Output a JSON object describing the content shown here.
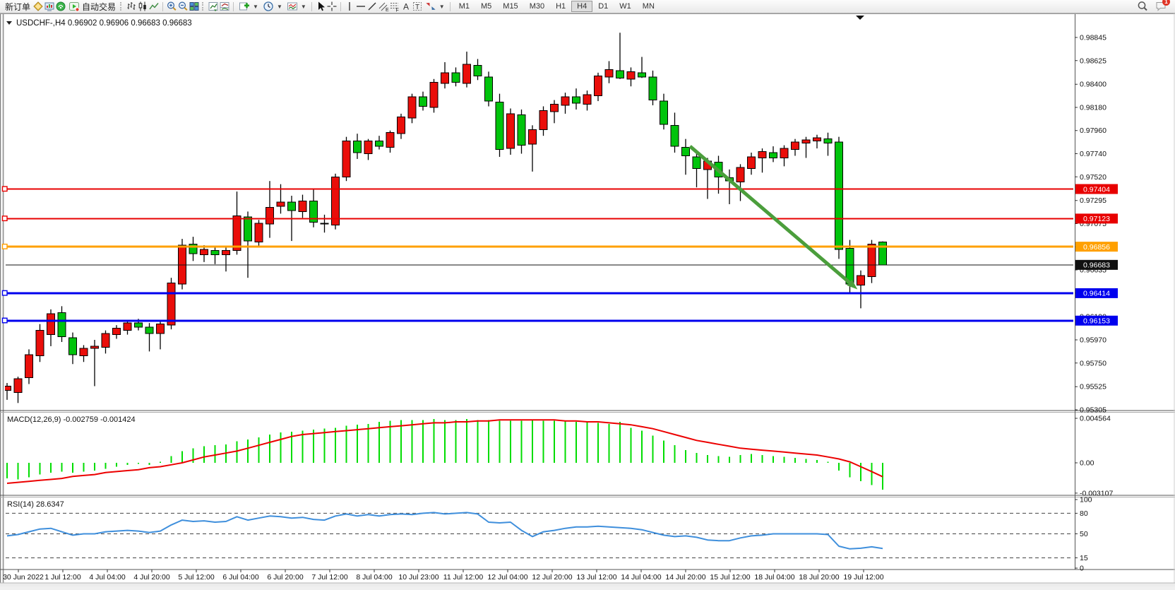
{
  "toolbar": {
    "new_order_label": "新订单",
    "auto_trading_label": "自动交易",
    "timeframes": [
      "M1",
      "M5",
      "M15",
      "M30",
      "H1",
      "H4",
      "D1",
      "W1",
      "MN"
    ],
    "active_timeframe": "H4",
    "notification_count": "1"
  },
  "chart_header": {
    "symbol_period": "USDCHF-,H4",
    "open": "0.96902",
    "high": "0.96906",
    "low": "0.96683",
    "close": "0.96683"
  },
  "colors": {
    "bull_candle": "#ea0e0a",
    "bear_candle": "#00c40c",
    "wick": "#000000",
    "red_line": "#e80000",
    "orange_line": "#ffa000",
    "blue_line": "#0000ee",
    "bid_line": "#111111",
    "macd_histogram": "#00dd00",
    "macd_signal": "#ec0000",
    "rsi_line": "#3f8fdc",
    "arrow": "#4b9e3c"
  },
  "chart_data": {
    "type": "candlestick",
    "symbol": "USDCHF-",
    "period": "H4",
    "x_labels": [
      "30 Jun 2022",
      "1 Jul 12:00",
      "4 Jul 04:00",
      "4 Jul 20:00",
      "5 Jul 12:00",
      "6 Jul 04:00",
      "6 Jul 20:00",
      "7 Jul 12:00",
      "8 Jul 04:00",
      "10 Jul 23:00",
      "11 Jul 12:00",
      "12 Jul 04:00",
      "12 Jul 20:00",
      "13 Jul 12:00",
      "14 Jul 04:00",
      "14 Jul 20:00",
      "15 Jul 12:00",
      "18 Jul 04:00",
      "18 Jul 20:00",
      "19 Jul 12:00"
    ],
    "y_ticks": [
      {
        "value": 0.98845,
        "label": "0.98845"
      },
      {
        "value": 0.98625,
        "label": "0.98625"
      },
      {
        "value": 0.984,
        "label": "0.98400"
      },
      {
        "value": 0.9818,
        "label": "0.98180"
      },
      {
        "value": 0.9796,
        "label": "0.97960"
      },
      {
        "value": 0.9774,
        "label": "0.97740"
      },
      {
        "value": 0.9752,
        "label": "0.97520"
      },
      {
        "value": 0.97295,
        "label": "0.97295"
      },
      {
        "value": 0.97075,
        "label": "0.97075"
      },
      {
        "value": 0.96855,
        "label": "0.96855"
      },
      {
        "value": 0.96635,
        "label": "0.96635"
      },
      {
        "value": 0.96415,
        "label": "0.96415"
      },
      {
        "value": 0.9619,
        "label": "0.96190"
      },
      {
        "value": 0.9597,
        "label": "0.95970"
      },
      {
        "value": 0.9575,
        "label": "0.95750"
      },
      {
        "value": 0.95525,
        "label": "0.95525"
      },
      {
        "value": 0.95305,
        "label": "0.95305"
      }
    ],
    "hlines": [
      {
        "price": 0.97404,
        "label": "0.97404",
        "color_key": "red_line",
        "width": 2
      },
      {
        "price": 0.97123,
        "label": "0.97123",
        "color_key": "red_line",
        "width": 2
      },
      {
        "price": 0.96856,
        "label": "0.96856",
        "color_key": "orange_line",
        "width": 3
      },
      {
        "price": 0.96414,
        "label": "0.96414",
        "color_key": "blue_line",
        "width": 3
      },
      {
        "price": 0.96153,
        "label": "0.96153",
        "color_key": "blue_line",
        "width": 3
      }
    ],
    "bid_line": {
      "price": 0.96683,
      "label": "0.96683",
      "color_key": "bid_line",
      "width": 1
    },
    "candles_ohlc": [
      [
        0.9549,
        0.9556,
        0.954,
        0.9553
      ],
      [
        0.9547,
        0.9562,
        0.9537,
        0.956
      ],
      [
        0.9561,
        0.9588,
        0.9555,
        0.9583
      ],
      [
        0.9582,
        0.9612,
        0.9576,
        0.9606
      ],
      [
        0.9602,
        0.9626,
        0.9591,
        0.9622
      ],
      [
        0.9623,
        0.9629,
        0.9595,
        0.96
      ],
      [
        0.9599,
        0.9604,
        0.9574,
        0.9583
      ],
      [
        0.9582,
        0.9592,
        0.9576,
        0.9589
      ],
      [
        0.9589,
        0.9597,
        0.9553,
        0.9591
      ],
      [
        0.959,
        0.9606,
        0.9584,
        0.9603
      ],
      [
        0.9602,
        0.9611,
        0.9598,
        0.9608
      ],
      [
        0.9606,
        0.9616,
        0.9602,
        0.9613
      ],
      [
        0.9613,
        0.9617,
        0.9606,
        0.9609
      ],
      [
        0.9609,
        0.9613,
        0.9586,
        0.9603
      ],
      [
        0.9603,
        0.9615,
        0.9588,
        0.9612
      ],
      [
        0.9611,
        0.9656,
        0.9607,
        0.9651
      ],
      [
        0.965,
        0.9693,
        0.9645,
        0.9687
      ],
      [
        0.9688,
        0.9695,
        0.9672,
        0.9679
      ],
      [
        0.9678,
        0.9687,
        0.9671,
        0.9683
      ],
      [
        0.9682,
        0.9686,
        0.9669,
        0.9678
      ],
      [
        0.9678,
        0.9685,
        0.9662,
        0.9682
      ],
      [
        0.9682,
        0.9738,
        0.9678,
        0.9715
      ],
      [
        0.9714,
        0.9719,
        0.9656,
        0.9691
      ],
      [
        0.969,
        0.9711,
        0.9685,
        0.9708
      ],
      [
        0.9707,
        0.9748,
        0.9694,
        0.9723
      ],
      [
        0.9724,
        0.9745,
        0.9717,
        0.9728
      ],
      [
        0.9728,
        0.9734,
        0.9691,
        0.972
      ],
      [
        0.9719,
        0.9735,
        0.9713,
        0.9729
      ],
      [
        0.9729,
        0.9741,
        0.9704,
        0.9709
      ],
      [
        0.9708,
        0.9716,
        0.9699,
        0.9707
      ],
      [
        0.9706,
        0.9755,
        0.9702,
        0.9752
      ],
      [
        0.9752,
        0.979,
        0.9748,
        0.9786
      ],
      [
        0.9786,
        0.9793,
        0.9769,
        0.9775
      ],
      [
        0.9774,
        0.9788,
        0.9768,
        0.9786
      ],
      [
        0.9786,
        0.9791,
        0.9778,
        0.9781
      ],
      [
        0.978,
        0.9796,
        0.9775,
        0.9794
      ],
      [
        0.9793,
        0.9812,
        0.9788,
        0.9809
      ],
      [
        0.9808,
        0.9831,
        0.9803,
        0.9828
      ],
      [
        0.9828,
        0.9833,
        0.9815,
        0.9819
      ],
      [
        0.9818,
        0.9845,
        0.9813,
        0.9842
      ],
      [
        0.9841,
        0.9861,
        0.9836,
        0.9851
      ],
      [
        0.9851,
        0.9856,
        0.9838,
        0.9842
      ],
      [
        0.9841,
        0.9871,
        0.9837,
        0.9859
      ],
      [
        0.9858,
        0.9864,
        0.9844,
        0.9848
      ],
      [
        0.9847,
        0.9852,
        0.9819,
        0.9824
      ],
      [
        0.9823,
        0.9831,
        0.9771,
        0.9778
      ],
      [
        0.9779,
        0.9817,
        0.9773,
        0.9812
      ],
      [
        0.9811,
        0.9816,
        0.9774,
        0.9782
      ],
      [
        0.9783,
        0.9801,
        0.9757,
        0.9797
      ],
      [
        0.9797,
        0.9819,
        0.9791,
        0.9815
      ],
      [
        0.9814,
        0.9825,
        0.9803,
        0.9821
      ],
      [
        0.982,
        0.9832,
        0.9812,
        0.9828
      ],
      [
        0.9828,
        0.9836,
        0.9816,
        0.9822
      ],
      [
        0.9821,
        0.9834,
        0.9815,
        0.983
      ],
      [
        0.9829,
        0.9851,
        0.9824,
        0.9848
      ],
      [
        0.9847,
        0.9862,
        0.9841,
        0.9854
      ],
      [
        0.9853,
        0.9889,
        0.9845,
        0.9846
      ],
      [
        0.9845,
        0.9856,
        0.9838,
        0.9852
      ],
      [
        0.9851,
        0.9866,
        0.9846,
        0.9847
      ],
      [
        0.9847,
        0.9853,
        0.982,
        0.9825
      ],
      [
        0.9824,
        0.9831,
        0.9797,
        0.9802
      ],
      [
        0.9801,
        0.9813,
        0.9775,
        0.9781
      ],
      [
        0.978,
        0.9788,
        0.9754,
        0.9772
      ],
      [
        0.9771,
        0.9777,
        0.9742,
        0.976
      ],
      [
        0.9759,
        0.977,
        0.9731,
        0.9767
      ],
      [
        0.9766,
        0.9772,
        0.9736,
        0.9752
      ],
      [
        0.9751,
        0.9759,
        0.9726,
        0.9748
      ],
      [
        0.9747,
        0.9764,
        0.9729,
        0.9761
      ],
      [
        0.976,
        0.9775,
        0.9754,
        0.9771
      ],
      [
        0.977,
        0.9779,
        0.9756,
        0.9776
      ],
      [
        0.9775,
        0.9781,
        0.9766,
        0.977
      ],
      [
        0.977,
        0.9782,
        0.9762,
        0.9779
      ],
      [
        0.9778,
        0.9788,
        0.9772,
        0.9785
      ],
      [
        0.9784,
        0.979,
        0.977,
        0.9787
      ],
      [
        0.9786,
        0.9792,
        0.9779,
        0.9789
      ],
      [
        0.9788,
        0.9794,
        0.9772,
        0.9784
      ],
      [
        0.9785,
        0.979,
        0.9674,
        0.9683
      ],
      [
        0.9684,
        0.9692,
        0.9641,
        0.965
      ],
      [
        0.9649,
        0.9663,
        0.9627,
        0.9658
      ],
      [
        0.9657,
        0.9692,
        0.9651,
        0.9688
      ],
      [
        0.96902,
        0.96906,
        0.96683,
        0.96683
      ]
    ],
    "annotation_arrow": {
      "from_index": 62.4,
      "from_price": 0.9781,
      "to_index": 77.7,
      "to_price": 0.9645
    },
    "indicators": [
      {
        "type": "histogram+line",
        "name": "MACD(12,26,9)",
        "label": "MACD(12,26,9) -0.002759 -0.001424",
        "main_value": "-0.002759",
        "signal_value": "-0.001424",
        "ticks": [
          {
            "value": 0.004564,
            "label": "0.004564"
          },
          {
            "value": 0,
            "label": "0.00"
          },
          {
            "value": -0.003107,
            "label": "-0.003107"
          }
        ],
        "histogram": [
          -0.0016,
          -0.0017,
          -0.0015,
          -0.0012,
          -0.001,
          -0.0009,
          -0.001,
          -0.0009,
          -0.0008,
          -0.0006,
          -0.0004,
          -0.0002,
          -0.0001,
          -0.0002,
          0.0001,
          0.0007,
          0.0012,
          0.0015,
          0.0017,
          0.0018,
          0.0019,
          0.0022,
          0.0024,
          0.0026,
          0.0029,
          0.0031,
          0.0032,
          0.0033,
          0.0034,
          0.0035,
          0.0036,
          0.0038,
          0.0039,
          0.004,
          0.0042,
          0.0043,
          0.0044,
          0.0044,
          0.0044,
          0.0045,
          0.0044,
          0.0044,
          0.0045,
          0.0044,
          0.0044,
          0.0043,
          0.0043,
          0.0043,
          0.0044,
          0.0043,
          0.0043,
          0.0043,
          0.0042,
          0.0042,
          0.0041,
          0.004,
          0.0042,
          0.0036,
          0.0033,
          0.0028,
          0.0023,
          0.0018,
          0.0013,
          0.001,
          0.0008,
          0.0007,
          0.0006,
          0.0008,
          0.0009,
          0.0008,
          0.0007,
          0.0006,
          0.0005,
          0.0004,
          0.0003,
          0.0001,
          -0.0008,
          -0.0015,
          -0.0019,
          -0.0023,
          -0.002759
        ],
        "signal": [
          -0.0021,
          -0.002,
          -0.0019,
          -0.0018,
          -0.0017,
          -0.0016,
          -0.0014,
          -0.0013,
          -0.0012,
          -0.001,
          -0.0009,
          -0.0008,
          -0.0007,
          -0.0005,
          -0.0004,
          -0.0002,
          0.0,
          0.0003,
          0.0006,
          0.0008,
          0.001,
          0.0012,
          0.0015,
          0.0018,
          0.0021,
          0.0024,
          0.0027,
          0.0029,
          0.003,
          0.0031,
          0.0032,
          0.0033,
          0.0034,
          0.0035,
          0.0036,
          0.0037,
          0.0038,
          0.0039,
          0.004,
          0.0041,
          0.0041,
          0.0042,
          0.0042,
          0.0043,
          0.0043,
          0.0044,
          0.0044,
          0.0044,
          0.0044,
          0.0044,
          0.0044,
          0.0043,
          0.0043,
          0.0042,
          0.0042,
          0.0041,
          0.004,
          0.0039,
          0.0037,
          0.0035,
          0.0032,
          0.0029,
          0.0026,
          0.0023,
          0.0021,
          0.0019,
          0.0017,
          0.0015,
          0.0014,
          0.0013,
          0.0012,
          0.0011,
          0.001,
          0.0009,
          0.0008,
          0.0006,
          0.0004,
          0.0001,
          -0.0004,
          -0.0009,
          -0.001424
        ]
      },
      {
        "type": "line",
        "name": "RSI(14)",
        "label": "RSI(14) 28.6347",
        "value": "28.6347",
        "levels": [
          80,
          50,
          15
        ],
        "ticks": [
          {
            "value": 100,
            "label": "100"
          },
          {
            "value": 80,
            "label": "80"
          },
          {
            "value": 50,
            "label": "50"
          },
          {
            "value": 15,
            "label": "15"
          },
          {
            "value": 0,
            "label": "0"
          }
        ],
        "values": [
          47,
          49,
          53,
          57,
          58,
          53,
          48,
          50,
          50,
          53,
          54,
          55,
          54,
          52,
          54,
          63,
          70,
          68,
          69,
          67,
          68,
          75,
          70,
          73,
          76,
          75,
          73,
          74,
          71,
          70,
          76,
          79,
          76,
          78,
          76,
          78,
          79,
          78,
          80,
          81,
          79,
          80,
          81,
          79,
          67,
          66,
          67,
          55,
          46,
          53,
          55,
          58,
          60,
          60,
          61,
          60,
          59,
          58,
          56,
          52,
          48,
          46,
          47,
          45,
          41,
          40,
          40,
          44,
          47,
          48,
          50,
          50,
          50,
          50,
          50,
          49,
          32,
          28,
          29,
          31,
          28.6
        ]
      }
    ]
  }
}
